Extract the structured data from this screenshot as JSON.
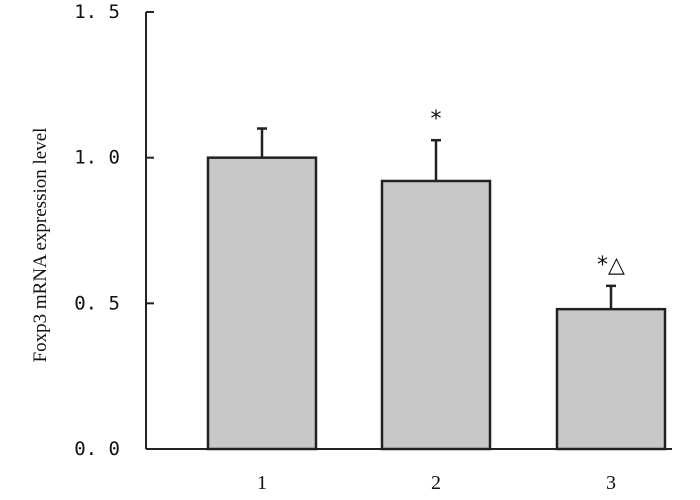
{
  "chart_data": {
    "type": "bar",
    "categories": [
      "1",
      "2",
      "3"
    ],
    "values": [
      1.0,
      0.92,
      0.48
    ],
    "error_bars": [
      0.1,
      0.14,
      0.08
    ],
    "annotations": [
      "",
      "*",
      "*△"
    ],
    "title": "",
    "xlabel": "",
    "ylabel": "Foxp3 mRNA expression level",
    "ylim": [
      0,
      1.5
    ],
    "yticks": [
      0.0,
      0.5,
      1.0,
      1.5
    ],
    "ytick_labels": [
      "0. 0",
      "0. 5",
      "1. 0",
      "1. 5"
    ],
    "grid": false,
    "legend": "none",
    "colors": {
      "bar_fill": "#c8c8c8",
      "bar_stroke": "#222222",
      "axis": "#222222"
    }
  }
}
